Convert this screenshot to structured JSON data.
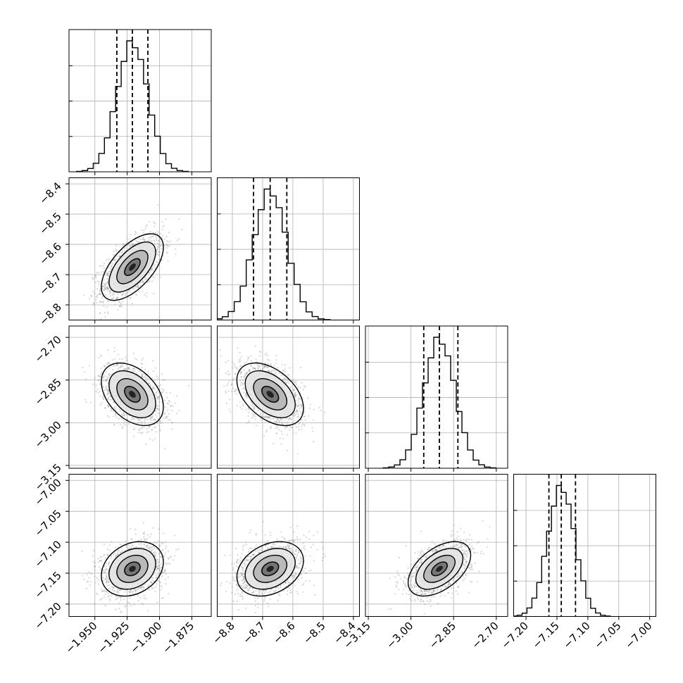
{
  "chart_data": {
    "type": "corner",
    "title": "",
    "parameters": [
      {
        "name": "",
        "mean": -1.921,
        "sd": 0.012,
        "range": [
          -1.97,
          -1.86
        ],
        "ticks": [
          -1.95,
          -1.925,
          -1.9,
          -1.875
        ],
        "tick_labels": [
          "−1.950",
          "−1.925",
          "−1.900",
          "−1.875"
        ],
        "quantiles": [
          -1.933,
          -1.921,
          -1.909
        ]
      },
      {
        "name": "",
        "mean": -8.675,
        "sd": 0.055,
        "range": [
          -8.85,
          -8.38
        ],
        "ticks": [
          -8.8,
          -8.7,
          -8.6,
          -8.5,
          -8.4
        ],
        "tick_labels": [
          "−8.8",
          "−8.7",
          "−8.6",
          "−8.5",
          "−8.4"
        ],
        "quantiles": [
          -8.73,
          -8.675,
          -8.62
        ]
      },
      {
        "name": "",
        "mean": -2.9,
        "sd": 0.055,
        "range": [
          -3.16,
          -2.66
        ],
        "ticks": [
          -3.15,
          -3.0,
          -2.85,
          -2.7
        ],
        "tick_labels": [
          "−3.15",
          "−3.00",
          "−2.85",
          "−2.70"
        ],
        "quantiles": [
          -2.955,
          -2.9,
          -2.835
        ]
      },
      {
        "name": "",
        "mean": -7.143,
        "sd": 0.022,
        "range": [
          -7.22,
          -6.99
        ],
        "ticks": [
          -7.2,
          -7.15,
          -7.1,
          -7.05,
          -7.0
        ],
        "tick_labels": [
          "−7.20",
          "−7.15",
          "−7.10",
          "−7.05",
          "−7.00"
        ],
        "quantiles": [
          -7.163,
          -7.143,
          -7.12
        ]
      }
    ],
    "correlations": [
      [
        0,
        1,
        0.6
      ],
      [
        0,
        2,
        -0.4
      ],
      [
        1,
        2,
        -0.45
      ],
      [
        0,
        3,
        0.25
      ],
      [
        1,
        3,
        0.3
      ],
      [
        2,
        3,
        0.5
      ]
    ],
    "histogram_bins": 20,
    "contour_levels_sigma": [
      0.5,
      1.0,
      1.5,
      2.0
    ],
    "points_per_panel": 1400,
    "grid": true,
    "legend": "none"
  }
}
